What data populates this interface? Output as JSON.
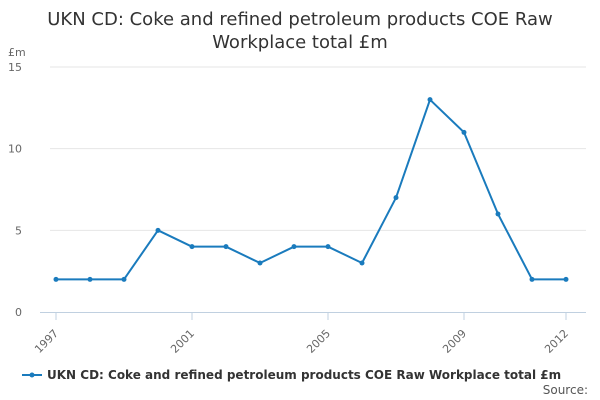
{
  "chart_data": {
    "type": "line",
    "title": "UKN CD: Coke and refined petroleum products COE Raw Workplace total £m",
    "y_unit": "£m",
    "x": [
      1997,
      1998,
      1999,
      2000,
      2001,
      2002,
      2003,
      2004,
      2005,
      2006,
      2007,
      2008,
      2009,
      2010,
      2011,
      2012
    ],
    "x_tick_labels": [
      "1997",
      "2001",
      "2005",
      "2009",
      "2012"
    ],
    "y_tick_labels": [
      "0",
      "5",
      "10",
      "15"
    ],
    "ylim": [
      0,
      15
    ],
    "grid": true,
    "legend_position": "bottom-left",
    "series": [
      {
        "name": "UKN CD: Coke and refined petroleum products COE Raw Workplace total £m",
        "color": "#1a7bbd",
        "values": [
          2,
          2,
          2,
          5,
          4,
          4,
          3,
          4,
          4,
          3,
          7,
          13,
          11,
          6,
          2,
          2
        ]
      }
    ]
  },
  "source_label": "Source:"
}
